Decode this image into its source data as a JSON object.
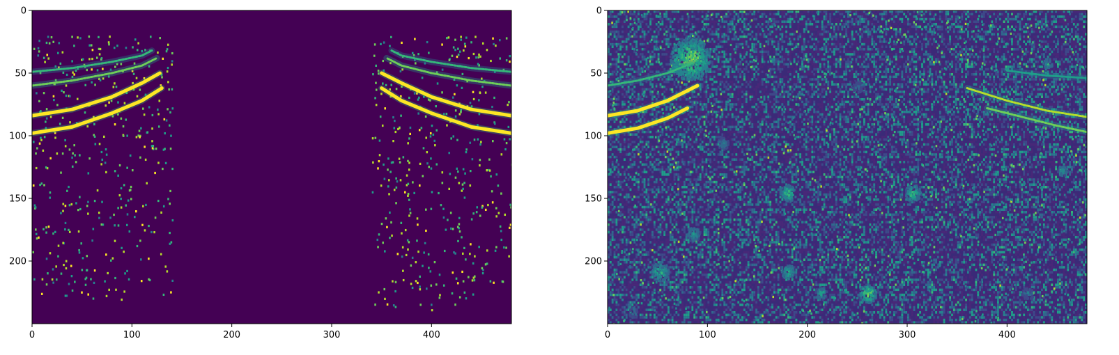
{
  "chart_data": [
    {
      "type": "heatmap",
      "title": "",
      "xlabel": "",
      "ylabel": "",
      "xlim": [
        0,
        480
      ],
      "ylim": [
        0,
        250
      ],
      "y_inverted": true,
      "xticks": [
        "0",
        "100",
        "200",
        "300",
        "400"
      ],
      "xtick_values": [
        0,
        100,
        200,
        300,
        400
      ],
      "yticks": [
        "0",
        "50",
        "100",
        "150",
        "200"
      ],
      "ytick_values": [
        0,
        50,
        100,
        150,
        200
      ],
      "colormap": "viridis",
      "background_color": "#440154",
      "highlight_color": "#fde725",
      "arcs": [
        {
          "points": [
            [
              0,
              98
            ],
            [
              40,
              93
            ],
            [
              80,
              82
            ],
            [
              110,
              72
            ],
            [
              130,
              62
            ]
          ],
          "intensity": 1.0
        },
        {
          "points": [
            [
              0,
              84
            ],
            [
              40,
              79
            ],
            [
              80,
              69
            ],
            [
              110,
              58
            ],
            [
              128,
              50
            ]
          ],
          "intensity": 1.0
        },
        {
          "points": [
            [
              0,
              60
            ],
            [
              40,
              56
            ],
            [
              80,
              50
            ],
            [
              110,
              44
            ],
            [
              125,
              38
            ]
          ],
          "intensity": 0.8
        },
        {
          "points": [
            [
              0,
              49
            ],
            [
              40,
              46
            ],
            [
              80,
              41
            ],
            [
              110,
              36
            ],
            [
              120,
              32
            ]
          ],
          "intensity": 0.7
        },
        {
          "points": [
            [
              480,
              98
            ],
            [
              440,
              93
            ],
            [
              400,
              82
            ],
            [
              370,
              72
            ],
            [
              350,
              62
            ]
          ],
          "intensity": 1.0
        },
        {
          "points": [
            [
              480,
              84
            ],
            [
              440,
              79
            ],
            [
              400,
              69
            ],
            [
              370,
              58
            ],
            [
              350,
              50
            ]
          ],
          "intensity": 1.0
        },
        {
          "points": [
            [
              480,
              60
            ],
            [
              440,
              56
            ],
            [
              400,
              50
            ],
            [
              370,
              44
            ],
            [
              355,
              38
            ]
          ],
          "intensity": 0.8
        },
        {
          "points": [
            [
              480,
              49
            ],
            [
              440,
              46
            ],
            [
              400,
              41
            ],
            [
              370,
              36
            ],
            [
              360,
              32
            ]
          ],
          "intensity": 0.7
        }
      ],
      "speckle_regions": [
        [
          0,
          20,
          140,
          230
        ],
        [
          340,
          20,
          480,
          240
        ]
      ],
      "blobs": []
    },
    {
      "type": "heatmap",
      "title": "",
      "xlabel": "",
      "ylabel": "",
      "xlim": [
        0,
        480
      ],
      "ylim": [
        0,
        250
      ],
      "y_inverted": true,
      "xticks": [
        "0",
        "100",
        "200",
        "300",
        "400"
      ],
      "xtick_values": [
        0,
        100,
        200,
        300,
        400
      ],
      "yticks": [
        "0",
        "50",
        "100",
        "150",
        "200"
      ],
      "ytick_values": [
        0,
        50,
        100,
        150,
        200
      ],
      "colormap": "viridis",
      "background_color": "#3b2a78",
      "highlight_color": "#fde725",
      "arcs": [
        {
          "points": [
            [
              0,
              98
            ],
            [
              30,
              94
            ],
            [
              60,
              86
            ],
            [
              80,
              78
            ]
          ],
          "intensity": 1.0
        },
        {
          "points": [
            [
              0,
              84
            ],
            [
              30,
              80
            ],
            [
              60,
              72
            ],
            [
              90,
              60
            ]
          ],
          "intensity": 1.0
        },
        {
          "points": [
            [
              0,
              60
            ],
            [
              30,
              56
            ],
            [
              60,
              50
            ],
            [
              85,
              42
            ]
          ],
          "intensity": 0.7
        },
        {
          "points": [
            [
              360,
              62
            ],
            [
              400,
              72
            ],
            [
              440,
              80
            ],
            [
              480,
              85
            ]
          ],
          "intensity": 0.85
        },
        {
          "points": [
            [
              380,
              78
            ],
            [
              420,
              86
            ],
            [
              450,
              92
            ],
            [
              480,
              97
            ]
          ],
          "intensity": 0.75
        },
        {
          "points": [
            [
              400,
              48
            ],
            [
              440,
              52
            ],
            [
              480,
              54
            ]
          ],
          "intensity": 0.6
        }
      ],
      "speckle_regions": [
        [
          0,
          0,
          480,
          250
        ]
      ],
      "blobs": [
        {
          "x": 82,
          "y": 38,
          "r": 20,
          "intensity": 0.9
        },
        {
          "x": 180,
          "y": 145,
          "r": 8,
          "intensity": 0.75
        },
        {
          "x": 305,
          "y": 145,
          "r": 8,
          "intensity": 0.75
        },
        {
          "x": 52,
          "y": 208,
          "r": 9,
          "intensity": 0.7
        },
        {
          "x": 180,
          "y": 208,
          "r": 7,
          "intensity": 0.7
        },
        {
          "x": 213,
          "y": 225,
          "r": 6,
          "intensity": 0.65
        },
        {
          "x": 260,
          "y": 225,
          "r": 9,
          "intensity": 0.85
        },
        {
          "x": 85,
          "y": 178,
          "r": 7,
          "intensity": 0.6
        },
        {
          "x": 440,
          "y": 42,
          "r": 5,
          "intensity": 0.6
        },
        {
          "x": 455,
          "y": 127,
          "r": 5,
          "intensity": 0.6
        },
        {
          "x": 25,
          "y": 240,
          "r": 5,
          "intensity": 0.5
        },
        {
          "x": 115,
          "y": 105,
          "r": 6,
          "intensity": 0.5
        },
        {
          "x": 420,
          "y": 225,
          "r": 6,
          "intensity": 0.45
        },
        {
          "x": 250,
          "y": 60,
          "r": 6,
          "intensity": 0.4
        }
      ]
    }
  ]
}
